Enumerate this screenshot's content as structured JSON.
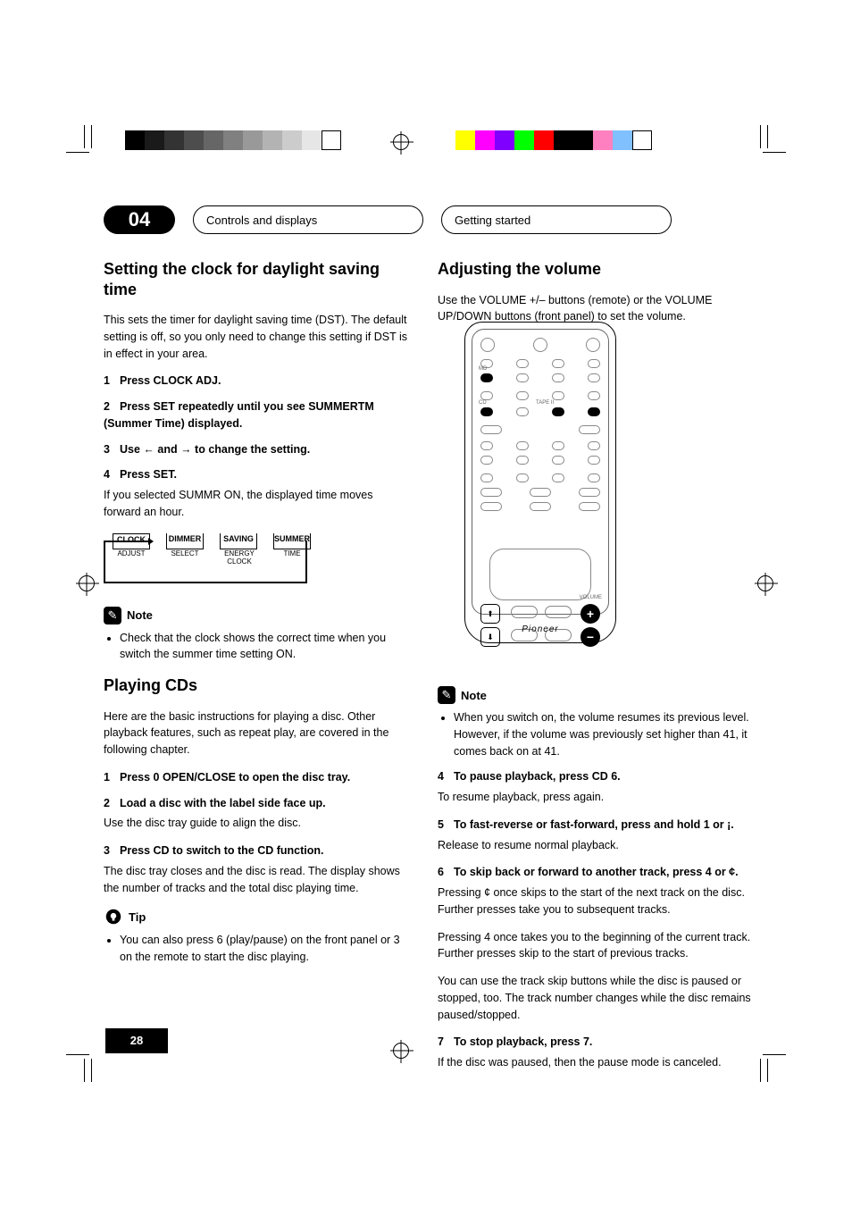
{
  "print_marks": {
    "grayscale_bar": [
      "#000000",
      "#1a1a1a",
      "#333333",
      "#4d4d4d",
      "#666666",
      "#808080",
      "#999999",
      "#b3b3b3",
      "#cccccc",
      "#e6e6e6",
      "#ffffff"
    ],
    "color_bar": [
      "#ffff00",
      "#ff00ff",
      "#8000ff",
      "#00ff00",
      "#ff0000",
      "#000000",
      "#000000",
      "#ff80c0",
      "#80c0ff",
      "#ffffff"
    ]
  },
  "header": {
    "chapter": "04",
    "pill1": "Controls and displays",
    "pill2": "Getting started"
  },
  "left": {
    "h2": "Setting the clock for daylight saving time",
    "p1": "This sets the timer for daylight saving time (DST). The default setting is off, so you only need to change this setting if DST is in effect in your area.",
    "s1_label": "1",
    "s1_b": "Press CLOCK ADJ.",
    "s2_label": "2",
    "s2_b": "Press SET repeatedly until you see SUMMERTM (Summer Time) displayed.",
    "s3_label": "3",
    "s3_b": "Use ",
    "s3_b2": " and ",
    "s3_b3": " to change the setting.",
    "s4_label": "4",
    "s4_b": "Press SET.",
    "s4_after": "If you selected SUMMR ON, the displayed time moves forward an hour.",
    "flow": {
      "b1_t": "CLOCK",
      "b1_s": "ADJUST",
      "b2_t": "DIMMER",
      "b2_s": "SELECT",
      "b3_t": "SAVING",
      "b3_s": "ENERGY CLOCK",
      "b4_t": "SUMMER",
      "b4_s": "TIME"
    },
    "note_label": "Note",
    "note_li1": "Check that the clock shows the correct time when you switch the summer time setting ON.",
    "h2b": "Playing CDs",
    "p2": "Here are the basic instructions for playing a disc. Other playback features, such as repeat play, are covered in the following chapter.",
    "s5_label": "1",
    "s5_b": "Press 0 OPEN/CLOSE to open the disc tray.",
    "s6_label": "2",
    "s6_b": "Load a disc with the label side face up.",
    "s6_after": "Use the disc tray guide to align the disc.",
    "s7_label": "3",
    "s7_b": "Press CD to switch to the CD function.",
    "s7_after": "The disc tray closes and the disc is read. The display shows the number of tracks and the total disc playing time.",
    "tip_label": "Tip",
    "tip_li1": "You can also press 6 (play/pause) on the front panel or 3 on the remote to start the disc playing."
  },
  "right": {
    "h2": "Adjusting the volume",
    "p1": "Use the VOLUME +/– buttons (remote) or the VOLUME UP/DOWN buttons (front panel) to set the volume.",
    "callouts": {
      "c1": "MD",
      "c2": "CD",
      "c3": "TAPE II",
      "c4": "VOLUME"
    },
    "note_label": "Note",
    "note_li1": "When you switch on, the volume resumes its previous level. However, if the volume was previously set higher than 41, it comes back on at 41.",
    "s4_label": "4",
    "s4_b": "To pause playback, press CD 6.",
    "s4_after": "To resume playback, press again.",
    "s5_label": "5",
    "s5_b": "To fast-reverse or fast-forward, press and hold 1 or ¡.",
    "s5_after": "Release to resume normal playback.",
    "s6_label": "6",
    "s6_b": "To skip back or forward to another track, press 4 or ¢.",
    "s6_after_a": "Pressing ¢ once skips to the start of the next track on the disc. Further presses take you to subsequent tracks.",
    "s6_after_b": "Pressing 4 once takes you to the beginning of the current track. Further presses skip to the start of previous tracks.",
    "s6_after_c": "You can use the track skip buttons while the disc is paused or stopped, too. The track number changes while the disc remains paused/stopped.",
    "s7_label": "7",
    "s7_b": "To stop playback, press 7.",
    "s7_after": "If the disc was paused, then the pause mode is canceled."
  },
  "page_number": "28",
  "remote_brand": "Pioneer"
}
